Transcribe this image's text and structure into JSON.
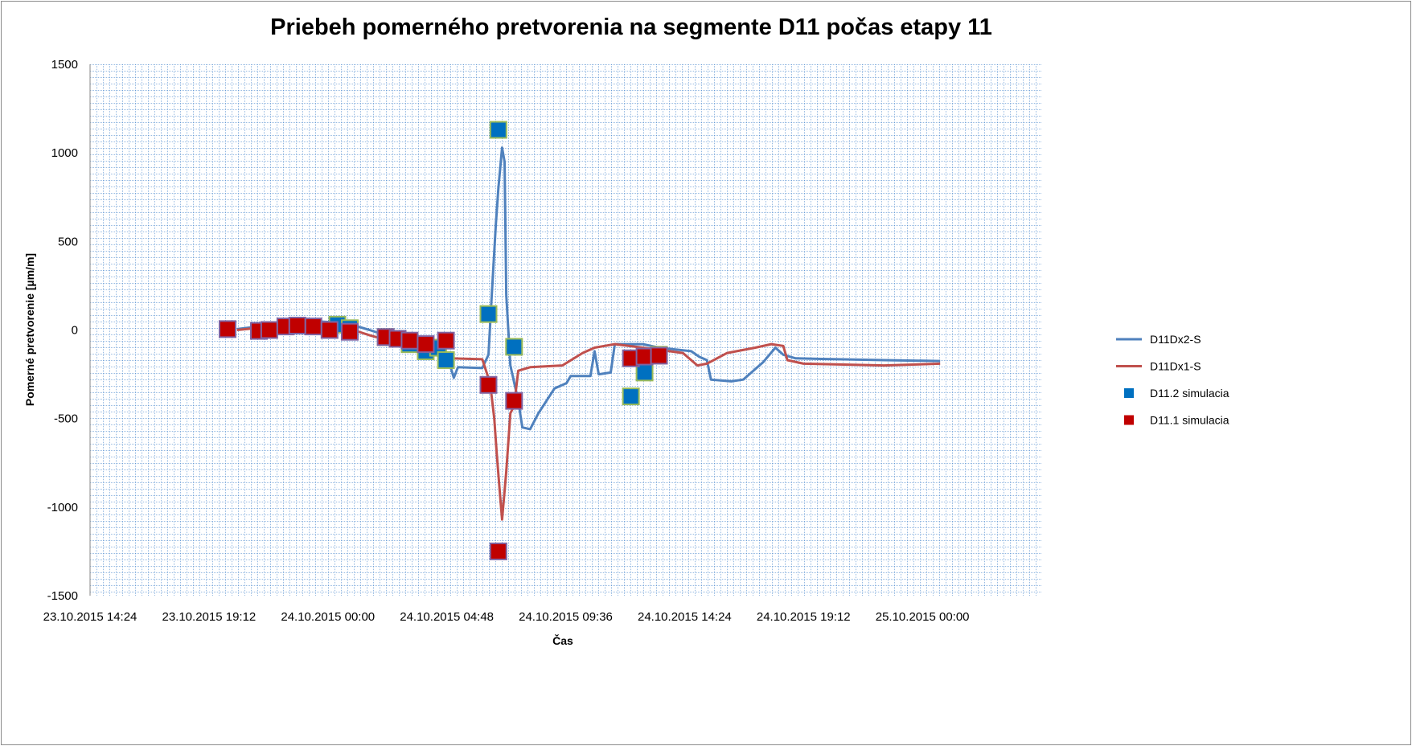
{
  "chart_data": {
    "type": "line",
    "title": "Priebeh pomerného pretvorenia na segmente D11 počas etapy 11",
    "xlabel": "Čas",
    "ylabel": "Pomerné pretvorenie [µm/m]",
    "ylim": [
      -1500,
      1500
    ],
    "yticks": [
      1500,
      1000,
      500,
      0,
      -500,
      -1000,
      -1500
    ],
    "xlim": [
      "23.10.2015 14:24",
      "25.10.2015 04:48"
    ],
    "xticks": [
      "23.10.2015 14:24",
      "23.10.2015 19:12",
      "24.10.2015 00:00",
      "24.10.2015 04:48",
      "24.10.2015 09:36",
      "24.10.2015 14:24",
      "24.10.2015 19:12",
      "25.10.2015 00:00"
    ],
    "grid": true,
    "legend_position": "right",
    "series": [
      {
        "name": "D11Dx2-S",
        "kind": "line",
        "color": "#4F81BD",
        "points": [
          [
            "23.10.2015 20:20",
            5
          ],
          [
            "23.10.2015 21:48",
            30
          ],
          [
            "23.10.2015 23:25",
            50
          ],
          [
            "24.10.2015 00:43",
            40
          ],
          [
            "24.10.2015 01:41",
            0
          ],
          [
            "24.10.2015 02:59",
            -60
          ],
          [
            "24.10.2015 04:17",
            -130
          ],
          [
            "24.10.2015 04:56",
            -200
          ],
          [
            "24.10.2015 05:05",
            -270
          ],
          [
            "24.10.2015 05:15",
            -210
          ],
          [
            "24.10.2015 06:14",
            -215
          ],
          [
            "24.10.2015 06:29",
            -140
          ],
          [
            "24.10.2015 06:37",
            200
          ],
          [
            "24.10.2015 06:47",
            600
          ],
          [
            "24.10.2015 06:53",
            800
          ],
          [
            "24.10.2015 07:02",
            1030
          ],
          [
            "24.10.2015 07:08",
            950
          ],
          [
            "24.10.2015 07:12",
            200
          ],
          [
            "24.10.2015 07:22",
            -200
          ],
          [
            "24.10.2015 07:41",
            -400
          ],
          [
            "24.10.2015 07:51",
            -550
          ],
          [
            "24.10.2015 08:10",
            -560
          ],
          [
            "24.10.2015 08:30",
            -470
          ],
          [
            "24.10.2015 09:09",
            -330
          ],
          [
            "24.10.2015 09:38",
            -300
          ],
          [
            "24.10.2015 09:48",
            -260
          ],
          [
            "24.10.2015 10:36",
            -260
          ],
          [
            "24.10.2015 10:46",
            -120
          ],
          [
            "24.10.2015 10:56",
            -250
          ],
          [
            "24.10.2015 11:25",
            -240
          ],
          [
            "24.10.2015 11:35",
            -80
          ],
          [
            "24.10.2015 12:43",
            -80
          ],
          [
            "24.10.2015 13:22",
            -100
          ],
          [
            "24.10.2015 14:40",
            -120
          ],
          [
            "24.10.2015 14:59",
            -150
          ],
          [
            "24.10.2015 15:18",
            -170
          ],
          [
            "24.10.2015 15:28",
            -280
          ],
          [
            "24.10.2015 16:17",
            -290
          ],
          [
            "24.10.2015 16:46",
            -280
          ],
          [
            "24.10.2015 17:35",
            -180
          ],
          [
            "24.10.2015 18:04",
            -100
          ],
          [
            "24.10.2015 18:23",
            -140
          ],
          [
            "24.10.2015 18:53",
            -160
          ],
          [
            "24.10.2015 22:27",
            -170
          ],
          [
            "25.10.2015 00:43",
            -175
          ]
        ]
      },
      {
        "name": "D11Dx1-S",
        "kind": "line",
        "color": "#C0504D",
        "points": [
          [
            "23.10.2015 20:20",
            0
          ],
          [
            "23.10.2015 21:48",
            20
          ],
          [
            "23.10.2015 23:44",
            40
          ],
          [
            "24.10.2015 01:02",
            0
          ],
          [
            "24.10.2015 01:41",
            -30
          ],
          [
            "24.10.2015 02:59",
            -80
          ],
          [
            "24.10.2015 04:17",
            -120
          ],
          [
            "24.10.2015 04:56",
            -160
          ],
          [
            "24.10.2015 06:14",
            -165
          ],
          [
            "24.10.2015 06:33",
            -300
          ],
          [
            "24.10.2015 06:43",
            -500
          ],
          [
            "24.10.2015 06:49",
            -700
          ],
          [
            "24.10.2015 06:56",
            -900
          ],
          [
            "24.10.2015 07:02",
            -1070
          ],
          [
            "24.10.2015 07:12",
            -800
          ],
          [
            "24.10.2015 07:22",
            -470
          ],
          [
            "24.10.2015 07:31",
            -430
          ],
          [
            "24.10.2015 07:41",
            -230
          ],
          [
            "24.10.2015 08:10",
            -210
          ],
          [
            "24.10.2015 09:28",
            -200
          ],
          [
            "24.10.2015 10:17",
            -130
          ],
          [
            "24.10.2015 10:46",
            -100
          ],
          [
            "24.10.2015 11:35",
            -80
          ],
          [
            "24.10.2015 12:43",
            -100
          ],
          [
            "24.10.2015 14:20",
            -130
          ],
          [
            "24.10.2015 14:55",
            -200
          ],
          [
            "24.10.2015 15:18",
            -190
          ],
          [
            "24.10.2015 16:07",
            -130
          ],
          [
            "24.10.2015 17:15",
            -100
          ],
          [
            "24.10.2015 17:54",
            -80
          ],
          [
            "24.10.2015 18:23",
            -90
          ],
          [
            "24.10.2015 18:33",
            -170
          ],
          [
            "24.10.2015 19:12",
            -190
          ],
          [
            "24.10.2015 22:27",
            -200
          ],
          [
            "25.10.2015 00:43",
            -190
          ]
        ]
      },
      {
        "name": "D11.2 simulacia",
        "kind": "marker",
        "color": "#0070C0",
        "edge": "#9BBB59",
        "points": [
          [
            "24.10.2015 00:23",
            30
          ],
          [
            "24.10.2015 00:53",
            10
          ],
          [
            "24.10.2015 02:20",
            -40
          ],
          [
            "24.10.2015 03:18",
            -80
          ],
          [
            "24.10.2015 03:57",
            -120
          ],
          [
            "24.10.2015 04:27",
            -100
          ],
          [
            "24.10.2015 04:46",
            -170
          ],
          [
            "24.10.2015 06:29",
            90
          ],
          [
            "24.10.2015 06:53",
            1130
          ],
          [
            "24.10.2015 07:31",
            -95
          ],
          [
            "24.10.2015 12:14",
            -375
          ],
          [
            "24.10.2015 12:47",
            -240
          ],
          [
            "24.10.2015 13:22",
            -140
          ]
        ]
      },
      {
        "name": "D11.1 simulacia",
        "kind": "marker",
        "color": "#C00000",
        "edge": "#8064A2",
        "points": [
          [
            "23.10.2015 19:57",
            5
          ],
          [
            "23.10.2015 21:13",
            -5
          ],
          [
            "23.10.2015 21:38",
            0
          ],
          [
            "23.10.2015 22:17",
            20
          ],
          [
            "23.10.2015 22:46",
            25
          ],
          [
            "23.10.2015 23:25",
            20
          ],
          [
            "24.10.2015 00:04",
            0
          ],
          [
            "24.10.2015 00:53",
            -10
          ],
          [
            "24.10.2015 02:20",
            -40
          ],
          [
            "24.10.2015 02:49",
            -50
          ],
          [
            "24.10.2015 03:18",
            -60
          ],
          [
            "24.10.2015 03:57",
            -80
          ],
          [
            "24.10.2015 04:46",
            -60
          ],
          [
            "24.10.2015 06:29",
            -310
          ],
          [
            "24.10.2015 07:31",
            -400
          ],
          [
            "24.10.2015 06:53",
            -1250
          ],
          [
            "24.10.2015 12:14",
            -160
          ],
          [
            "24.10.2015 12:47",
            -150
          ],
          [
            "24.10.2015 13:22",
            -145
          ]
        ]
      }
    ]
  }
}
